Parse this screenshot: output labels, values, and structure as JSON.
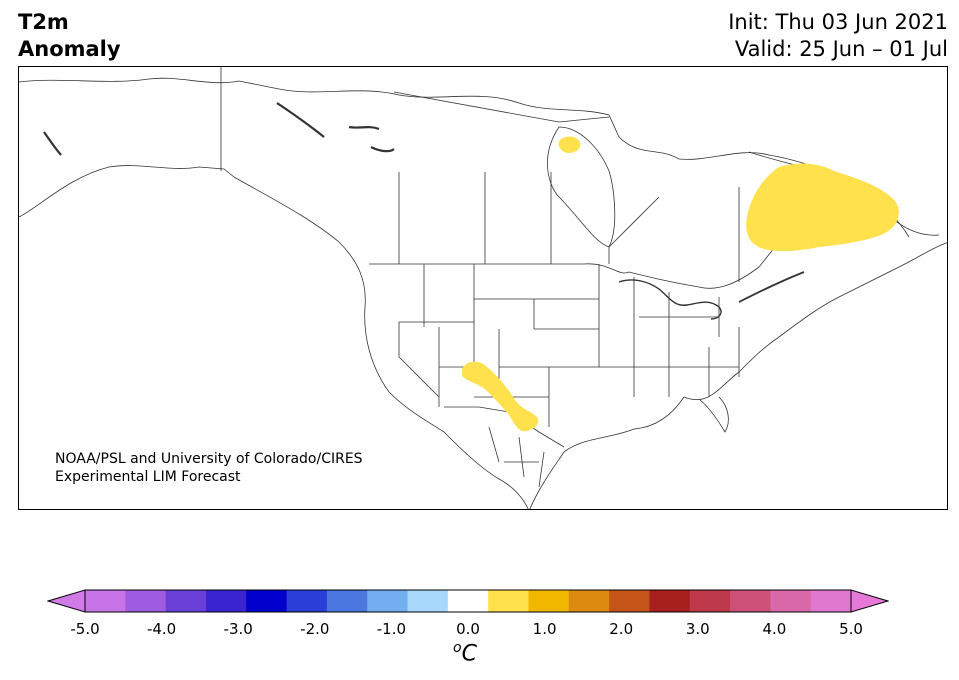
{
  "header": {
    "title_line1": "T2m",
    "title_line2": "Anomaly",
    "init_label": "Init: Thu 03 Jun 2021",
    "valid_label": "Valid: 25 Jun – 01 Jul"
  },
  "credit": {
    "line1": "NOAA/PSL and University of Colorado/CIRES",
    "line2": "Experimental LIM Forecast"
  },
  "map": {
    "region": "North America",
    "anomaly_areas": [
      {
        "name": "Quebec / Labrador",
        "category": "0.5 to 1.0",
        "color": "#ffe14d"
      },
      {
        "name": "Southwest (Arizona–New Mexico–Chihuahua)",
        "category": "0.5 to 1.0",
        "color": "#ffe14d"
      },
      {
        "name": "Hudson Bay islands",
        "category": "0.5 to 1.0",
        "color": "#ffe14d"
      }
    ]
  },
  "colorbar": {
    "unit_base": "C",
    "unit_sup": "o",
    "ticks": [
      "-5.0",
      "-4.0",
      "-3.0",
      "-2.0",
      "-1.0",
      "0.0",
      "1.0",
      "2.0",
      "3.0",
      "4.0",
      "5.0"
    ],
    "bins": [
      -5.0,
      -4.5,
      -4.0,
      -3.5,
      -3.0,
      -2.5,
      -2.0,
      -1.5,
      -1.0,
      -0.5,
      0.5,
      1.0,
      1.5,
      2.0,
      2.5,
      3.0,
      3.5,
      4.0,
      4.5,
      5.0
    ],
    "colors": [
      "#c873e8",
      "#a05ce0",
      "#6a3fd8",
      "#3a24d0",
      "#0000cc",
      "#2a3fd8",
      "#4a78e0",
      "#72aef0",
      "#a8d8fa",
      "#ffffff",
      "#ffe14d",
      "#f2b800",
      "#dc8a10",
      "#c45418",
      "#a8201e",
      "#be3a4a",
      "#cc5078",
      "#d868a8",
      "#e078d0"
    ],
    "under_color": "#d07ae8",
    "over_color": "#e878d8"
  }
}
